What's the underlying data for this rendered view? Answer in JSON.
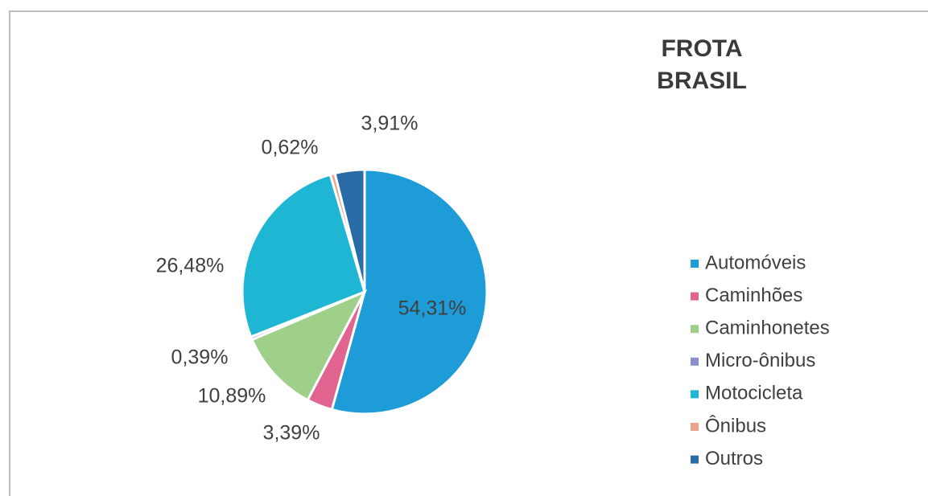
{
  "chart_data": {
    "type": "pie",
    "title": [
      "FROTA",
      "BRASIL"
    ],
    "categories": [
      "Automóveis",
      "Caminhões",
      "Caminhonetes",
      "Micro-ônibus",
      "Motocicleta",
      "Ônibus",
      "Outros"
    ],
    "values": [
      54.31,
      3.39,
      10.89,
      0.39,
      26.48,
      0.62,
      3.91
    ],
    "value_labels": [
      "54,31%",
      "3,39%",
      "10,89%",
      "0,39%",
      "26,48%",
      "0,62%",
      "3,91%"
    ],
    "colors": [
      "#1e9cd7",
      "#e0648f",
      "#9fd08a",
      "#8a8fcf",
      "#1fb6d4",
      "#e8a48e",
      "#2a6ca8"
    ],
    "legend": "right"
  }
}
